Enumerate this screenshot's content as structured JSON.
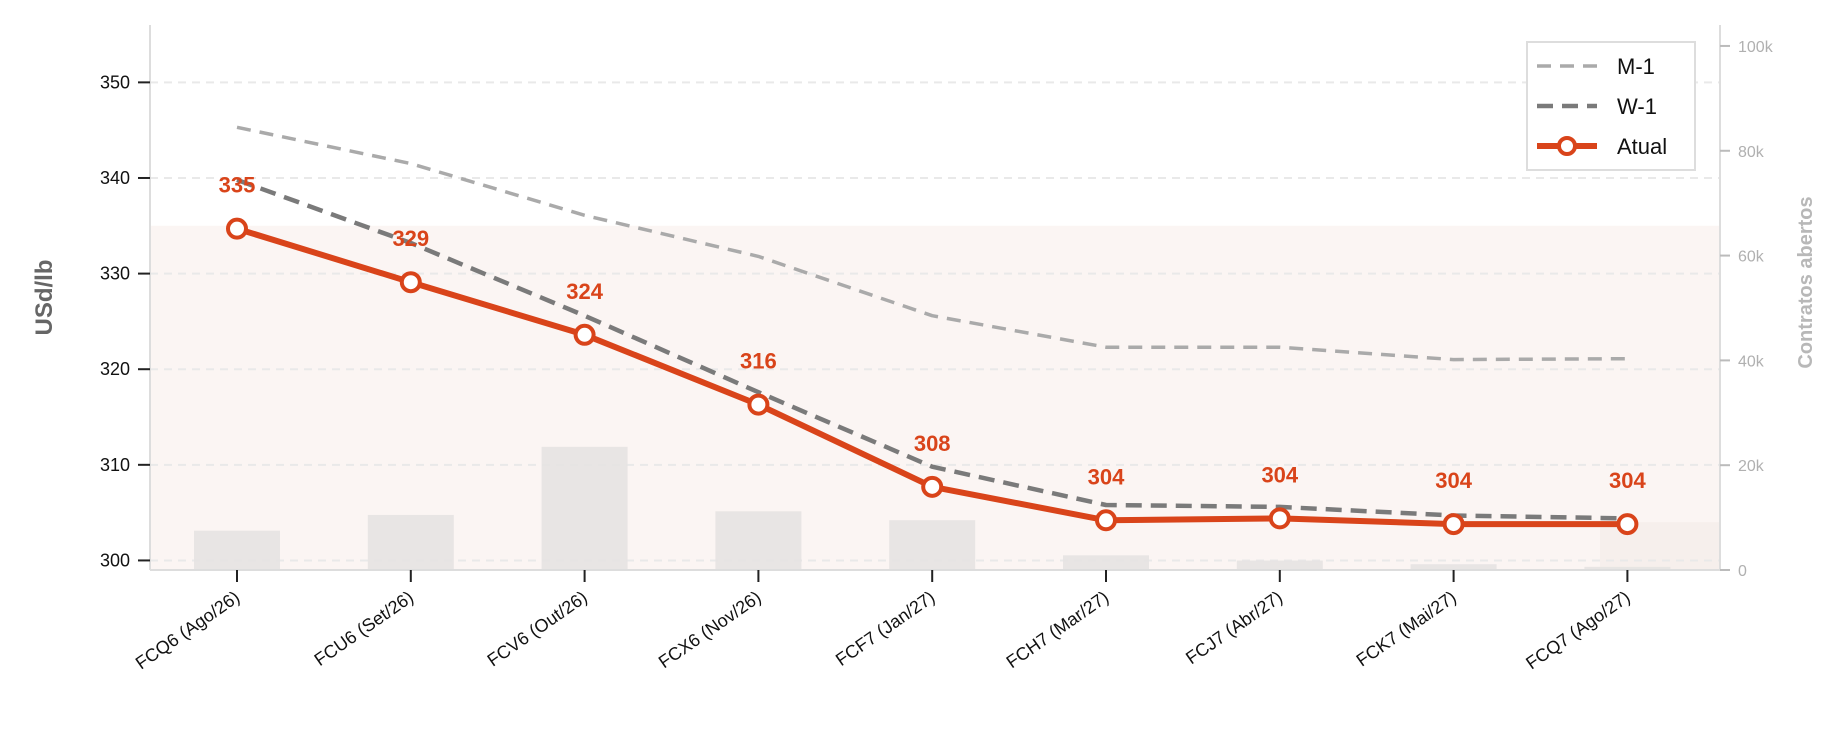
{
  "chart_data": {
    "type": "line",
    "categories": [
      "FCQ6 (Ago/26)",
      "FCU6 (Set/26)",
      "FCV6 (Out/26)",
      "FCX6 (Nov/26)",
      "FCF7 (Jan/27)",
      "FCH7 (Mar/27)",
      "FCJ7 (Abr/27)",
      "FCK7 (Mai/27)",
      "FCQ7 (Ago/27)"
    ],
    "ylabel": "USd/lb",
    "y2label": "Contratos abertos",
    "ylim": [
      299,
      356
    ],
    "yticks": [
      300,
      310,
      320,
      330,
      340,
      350
    ],
    "y2lim": [
      0,
      104000
    ],
    "y2ticks": [
      0,
      20000,
      40000,
      60000,
      80000,
      100000
    ],
    "y2tick_labels": [
      "0",
      "20k",
      "40k",
      "60k",
      "80k",
      "100k"
    ],
    "grid": "horizontal dashed",
    "legend_position": "top-right",
    "series": [
      {
        "name": "M-1",
        "style": "dashed-light",
        "color": "#aaaaaa",
        "values": [
          345.3,
          341.5,
          336.1,
          331.8,
          325.6,
          322.3,
          322.3,
          321.0,
          321.1
        ]
      },
      {
        "name": "W-1",
        "style": "dashed-dark",
        "color": "#7a7a7a",
        "values": [
          339.8,
          333.2,
          325.6,
          317.6,
          309.8,
          305.8,
          305.6,
          304.7,
          304.4
        ]
      },
      {
        "name": "Atual",
        "style": "solid-marker",
        "color": "#d9441a",
        "values": [
          334.7,
          329.1,
          323.6,
          316.3,
          307.7,
          304.2,
          304.4,
          303.8,
          303.8
        ],
        "labels": [
          "335",
          "329",
          "324",
          "316",
          "308",
          "304",
          "304",
          "304",
          "304"
        ]
      }
    ],
    "open_interest": [
      7500,
      10500,
      23500,
      11200,
      9500,
      2800,
      1800,
      1100,
      600
    ]
  }
}
